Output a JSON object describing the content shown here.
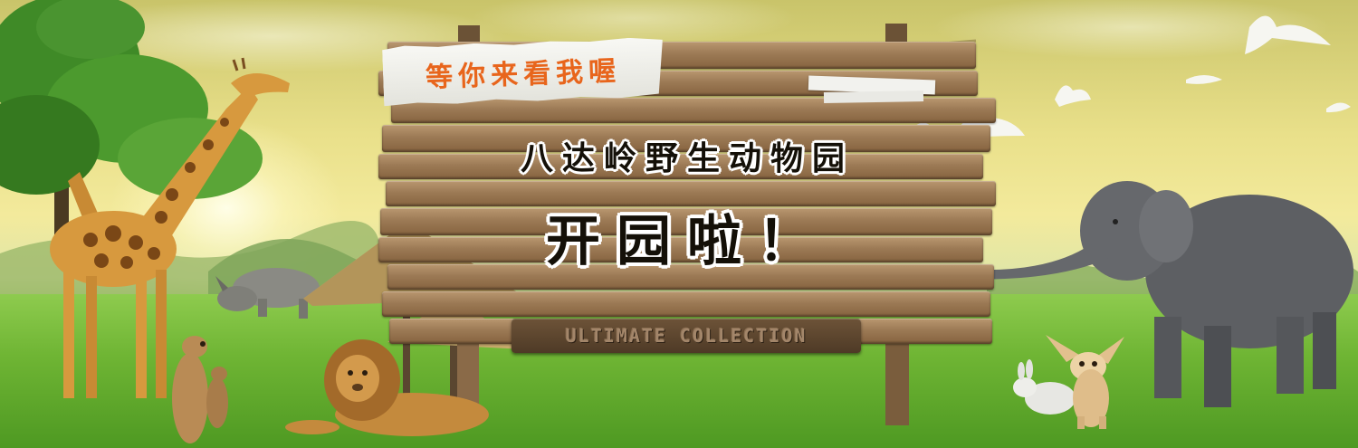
{
  "banner": {
    "tag_text": "等你来看我喔",
    "title": "八达岭野生动物园",
    "headline": "开园啦！",
    "plate_text": "ULTIMATE  COLLECTION"
  },
  "colors": {
    "sky": "#ecE295",
    "grass": "#5ea82c",
    "wood": "#9c7a55",
    "tag_text": "#e8651c"
  },
  "scene_elements": [
    "tree",
    "giraffe",
    "rhino",
    "meerkats",
    "lion",
    "straw-umbrellas",
    "signboard",
    "doves",
    "rabbit",
    "fennec-fox",
    "elephant"
  ]
}
